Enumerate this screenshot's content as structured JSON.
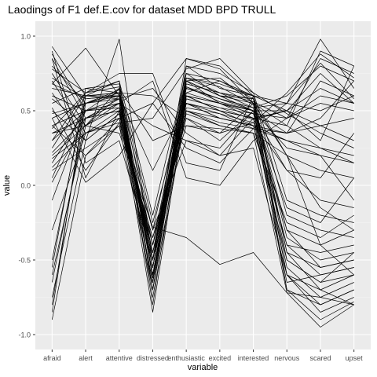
{
  "chart_data": {
    "type": "line",
    "title": "Laodings of F1 def.E.cov for dataset MDD BPD TRULL",
    "xlabel": "variable",
    "ylabel": "value",
    "categories": [
      "afraid",
      "alert",
      "attentive",
      "distressed",
      "enthusiastic",
      "excited",
      "interested",
      "nervous",
      "scared",
      "upset"
    ],
    "ylim": [
      -1.1,
      1.1
    ],
    "yticks": [
      -1.0,
      -0.5,
      0.0,
      0.5,
      1.0
    ],
    "ytick_labels": [
      "-1.0",
      "-0.5",
      "0.0",
      "0.5",
      "1.0"
    ],
    "grid": true,
    "legend": "none",
    "colors": {
      "panel": "#ebebeb",
      "grid_major": "#ffffff",
      "grid_minor": "#f5f5f5",
      "line": "#000000",
      "text": "#4d4d4d",
      "title": "#000000"
    },
    "series": [
      {
        "values": [
          0.93,
          0.6,
          0.62,
          -0.3,
          0.7,
          0.72,
          0.55,
          0.2,
          -0.4,
          -0.6
        ]
      },
      {
        "values": [
          0.88,
          0.5,
          0.65,
          -0.5,
          0.8,
          0.65,
          0.6,
          -0.7,
          -0.8,
          -0.7
        ]
      },
      {
        "values": [
          0.85,
          0.45,
          0.58,
          -0.55,
          0.75,
          0.6,
          0.5,
          -0.6,
          -0.7,
          -0.8
        ]
      },
      {
        "values": [
          0.8,
          0.55,
          0.6,
          -0.6,
          0.7,
          0.55,
          0.45,
          -0.65,
          -0.6,
          -0.55
        ]
      },
      {
        "values": [
          0.75,
          0.4,
          0.55,
          -0.45,
          0.65,
          0.58,
          0.52,
          -0.55,
          -0.75,
          -0.65
        ]
      },
      {
        "values": [
          0.7,
          0.35,
          0.5,
          -0.65,
          0.6,
          0.5,
          0.4,
          -0.5,
          -0.65,
          -0.6
        ]
      },
      {
        "values": [
          0.65,
          0.6,
          0.6,
          -0.7,
          0.68,
          0.62,
          0.58,
          -0.45,
          -0.55,
          -0.5
        ]
      },
      {
        "values": [
          0.6,
          0.5,
          0.52,
          -0.5,
          0.72,
          0.66,
          0.54,
          -0.35,
          -0.5,
          -0.45
        ]
      },
      {
        "values": [
          0.55,
          0.65,
          0.68,
          -0.4,
          0.55,
          0.45,
          0.4,
          -0.4,
          -0.45,
          -0.4
        ]
      },
      {
        "values": [
          0.5,
          0.3,
          0.48,
          -0.55,
          0.62,
          0.7,
          0.6,
          -0.2,
          -0.3,
          -0.35
        ]
      },
      {
        "values": [
          0.45,
          0.55,
          0.62,
          -0.6,
          0.58,
          0.52,
          0.48,
          -0.3,
          -0.4,
          -0.3
        ]
      },
      {
        "values": [
          0.4,
          0.2,
          0.45,
          -0.65,
          0.8,
          0.75,
          0.62,
          -0.1,
          -0.2,
          -0.25
        ]
      },
      {
        "values": [
          0.35,
          0.45,
          0.55,
          -0.75,
          0.5,
          0.4,
          0.35,
          -0.25,
          -0.35,
          -0.2
        ]
      },
      {
        "values": [
          0.25,
          0.6,
          0.58,
          -0.5,
          0.66,
          0.56,
          0.5,
          -0.15,
          -0.25,
          0.05
        ]
      },
      {
        "values": [
          0.2,
          0.4,
          0.6,
          -0.45,
          0.45,
          0.35,
          0.42,
          0.1,
          -0.1,
          -0.15
        ]
      },
      {
        "values": [
          0.15,
          0.5,
          0.52,
          -0.55,
          0.7,
          0.6,
          0.58,
          0.2,
          0.1,
          0.05
        ]
      },
      {
        "values": [
          0.1,
          0.25,
          0.4,
          -0.7,
          0.52,
          0.48,
          0.38,
          0.3,
          0.25,
          0.15
        ]
      },
      {
        "values": [
          0.05,
          0.55,
          0.64,
          -0.6,
          0.6,
          0.55,
          0.5,
          0.35,
          0.4,
          0.3
        ]
      },
      {
        "values": [
          -0.1,
          0.5,
          0.55,
          -0.5,
          0.68,
          0.62,
          0.56,
          0.45,
          0.55,
          0.5
        ]
      },
      {
        "values": [
          -0.3,
          0.35,
          0.45,
          -0.4,
          0.72,
          0.68,
          0.6,
          0.5,
          0.65,
          0.55
        ]
      },
      {
        "values": [
          -0.5,
          0.6,
          0.62,
          -0.55,
          0.65,
          0.58,
          0.52,
          0.6,
          0.8,
          0.7
        ]
      },
      {
        "values": [
          -0.65,
          0.45,
          0.5,
          -0.65,
          0.6,
          0.5,
          0.45,
          0.4,
          0.9,
          0.8
        ]
      },
      {
        "values": [
          -0.75,
          0.3,
          0.48,
          -0.45,
          0.55,
          0.45,
          0.4,
          0.35,
          0.7,
          0.6
        ]
      },
      {
        "values": [
          -0.9,
          0.2,
          0.4,
          -0.35,
          0.5,
          0.42,
          0.38,
          0.55,
          0.98,
          0.65
        ]
      },
      {
        "values": [
          -0.8,
          0.55,
          0.58,
          -0.6,
          0.62,
          0.55,
          0.48,
          0.45,
          0.85,
          0.75
        ]
      },
      {
        "values": [
          -0.6,
          0.4,
          0.52,
          -0.85,
          0.58,
          0.52,
          0.44,
          0.5,
          0.75,
          0.55
        ]
      },
      {
        "values": [
          0.9,
          0.15,
          0.3,
          -0.5,
          0.48,
          0.4,
          0.35,
          -0.72,
          -0.95,
          -0.8
        ]
      },
      {
        "values": [
          0.85,
          0.05,
          0.5,
          -0.3,
          0.3,
          0.2,
          0.25,
          -0.6,
          -0.85,
          -0.75
        ]
      },
      {
        "values": [
          0.78,
          0.62,
          0.7,
          -0.2,
          0.75,
          0.7,
          0.58,
          -0.5,
          -0.65,
          -0.45
        ]
      },
      {
        "values": [
          0.68,
          0.58,
          0.6,
          0.1,
          0.55,
          0.5,
          0.45,
          -0.4,
          -0.6,
          -0.55
        ]
      },
      {
        "values": [
          0.58,
          0.4,
          0.65,
          0.3,
          0.4,
          0.35,
          0.55,
          -0.3,
          -0.55,
          -0.5
        ]
      },
      {
        "values": [
          0.62,
          0.3,
          0.98,
          -0.5,
          0.85,
          0.8,
          0.6,
          -0.45,
          -0.7,
          -0.6
        ]
      },
      {
        "values": [
          0.48,
          0.55,
          0.62,
          0.6,
          0.45,
          0.3,
          0.5,
          0.25,
          0.2,
          0.15
        ]
      },
      {
        "values": [
          0.4,
          0.5,
          0.58,
          0.65,
          0.35,
          0.2,
          0.45,
          0.5,
          0.4,
          0.45
        ]
      },
      {
        "values": [
          0.3,
          0.62,
          0.75,
          0.75,
          0.15,
          0.1,
          0.6,
          0.55,
          0.5,
          0.6
        ]
      },
      {
        "values": [
          0.22,
          0.45,
          0.55,
          0.7,
          0.05,
          0.0,
          0.3,
          0.45,
          0.6,
          0.55
        ]
      },
      {
        "values": [
          0.12,
          0.35,
          0.45,
          0.55,
          0.25,
          0.15,
          0.38,
          0.35,
          0.45,
          0.7
        ]
      },
      {
        "values": [
          0.3,
          0.5,
          0.55,
          0.4,
          0.3,
          0.25,
          0.5,
          0.5,
          0.3,
          0.8
        ]
      },
      {
        "values": [
          0.35,
          0.4,
          0.35,
          -0.28,
          -0.35,
          -0.53,
          -0.45,
          -0.72,
          -0.75,
          -0.8
        ]
      },
      {
        "values": [
          0.45,
          0.02,
          0.2,
          0.55,
          0.85,
          0.78,
          0.55,
          0.4,
          0.25,
          0.2
        ]
      },
      {
        "values": [
          0.52,
          0.1,
          0.42,
          0.45,
          0.78,
          0.85,
          0.62,
          0.48,
          0.35,
          0.25
        ]
      },
      {
        "values": [
          0.68,
          0.92,
          0.6,
          -0.55,
          0.7,
          0.6,
          0.55,
          -0.6,
          -0.8,
          -0.7
        ]
      },
      {
        "values": [
          -0.55,
          0.65,
          0.62,
          -0.62,
          0.55,
          0.48,
          0.42,
          0.62,
          0.88,
          0.72
        ]
      },
      {
        "values": [
          -0.85,
          0.6,
          0.7,
          -0.7,
          0.72,
          0.62,
          0.52,
          0.55,
          0.82,
          0.58
        ]
      },
      {
        "values": [
          0.02,
          0.45,
          0.5,
          -0.4,
          0.5,
          0.45,
          0.4,
          0.3,
          0.2,
          -0.1
        ]
      },
      {
        "values": [
          0.18,
          0.35,
          0.42,
          -0.35,
          0.4,
          0.38,
          0.35,
          0.2,
          -0.15,
          -0.3
        ]
      },
      {
        "values": [
          0.72,
          0.58,
          0.6,
          -0.8,
          0.66,
          0.58,
          0.5,
          -0.7,
          -0.9,
          -0.78
        ]
      },
      {
        "values": [
          0.38,
          0.62,
          0.66,
          -0.25,
          0.6,
          0.55,
          0.48,
          0.1,
          0.05,
          0.35
        ]
      }
    ]
  }
}
